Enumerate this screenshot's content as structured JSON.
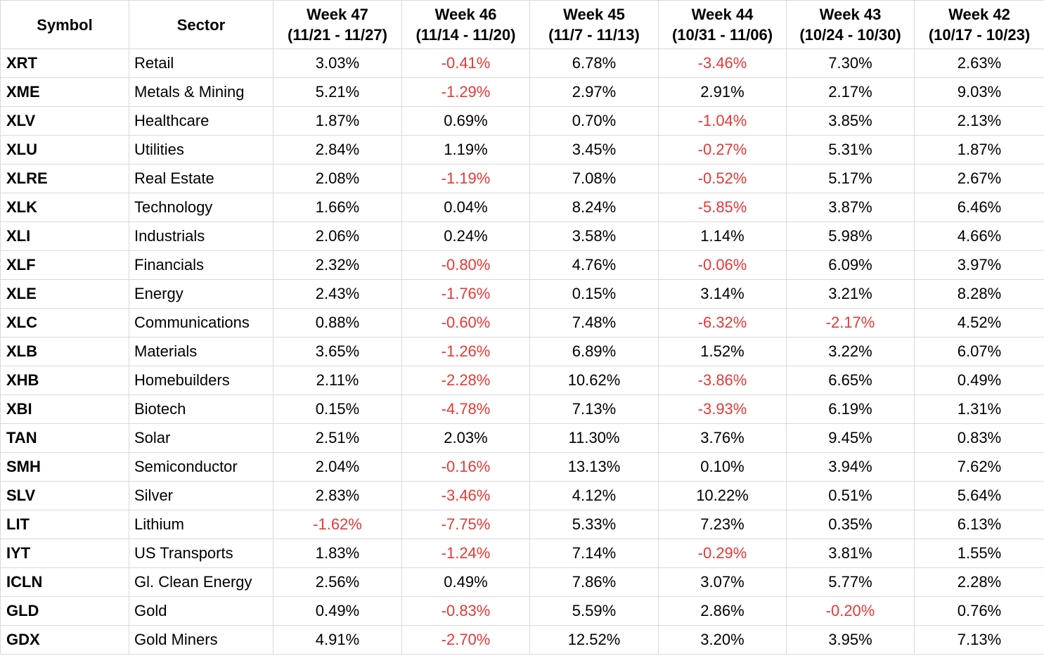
{
  "header": {
    "symbol": "Symbol",
    "sector": "Sector",
    "weeks": [
      {
        "label": "Week 47",
        "range": "(11/21 - 11/27)"
      },
      {
        "label": "Week 46",
        "range": "(11/14 - 11/20)"
      },
      {
        "label": "Week 45",
        "range": "(11/7 - 11/13)"
      },
      {
        "label": "Week 44",
        "range": "(10/31 - 11/06)"
      },
      {
        "label": "Week 43",
        "range": "(10/24 - 10/30)"
      },
      {
        "label": "Week 42",
        "range": "(10/17 - 10/23)"
      }
    ]
  },
  "colors": {
    "negative": "#e53935",
    "border": "#d9d9d9"
  },
  "rows": [
    {
      "symbol": "XRT",
      "sector": "Retail",
      "values": [
        "3.03%",
        "-0.41%",
        "6.78%",
        "-3.46%",
        "7.30%",
        "2.63%"
      ]
    },
    {
      "symbol": "XME",
      "sector": "Metals & Mining",
      "values": [
        "5.21%",
        "-1.29%",
        "2.97%",
        "2.91%",
        "2.17%",
        "9.03%"
      ]
    },
    {
      "symbol": "XLV",
      "sector": "Healthcare",
      "values": [
        "1.87%",
        "0.69%",
        "0.70%",
        "-1.04%",
        "3.85%",
        "2.13%"
      ]
    },
    {
      "symbol": "XLU",
      "sector": "Utilities",
      "values": [
        "2.84%",
        "1.19%",
        "3.45%",
        "-0.27%",
        "5.31%",
        "1.87%"
      ]
    },
    {
      "symbol": "XLRE",
      "sector": "Real Estate",
      "values": [
        "2.08%",
        "-1.19%",
        "7.08%",
        "-0.52%",
        "5.17%",
        "2.67%"
      ]
    },
    {
      "symbol": "XLK",
      "sector": "Technology",
      "values": [
        "1.66%",
        "0.04%",
        "8.24%",
        "-5.85%",
        "3.87%",
        "6.46%"
      ]
    },
    {
      "symbol": "XLI",
      "sector": "Industrials",
      "values": [
        "2.06%",
        "0.24%",
        "3.58%",
        "1.14%",
        "5.98%",
        "4.66%"
      ]
    },
    {
      "symbol": "XLF",
      "sector": "Financials",
      "values": [
        "2.32%",
        "-0.80%",
        "4.76%",
        "-0.06%",
        "6.09%",
        "3.97%"
      ]
    },
    {
      "symbol": "XLE",
      "sector": "Energy",
      "values": [
        "2.43%",
        "-1.76%",
        "0.15%",
        "3.14%",
        "3.21%",
        "8.28%"
      ]
    },
    {
      "symbol": "XLC",
      "sector": "Communications",
      "values": [
        "0.88%",
        "-0.60%",
        "7.48%",
        "-6.32%",
        "-2.17%",
        "4.52%"
      ]
    },
    {
      "symbol": "XLB",
      "sector": "Materials",
      "values": [
        "3.65%",
        "-1.26%",
        "6.89%",
        "1.52%",
        "3.22%",
        "6.07%"
      ]
    },
    {
      "symbol": "XHB",
      "sector": "Homebuilders",
      "values": [
        "2.11%",
        "-2.28%",
        "10.62%",
        "-3.86%",
        "6.65%",
        "0.49%"
      ]
    },
    {
      "symbol": "XBI",
      "sector": "Biotech",
      "values": [
        "0.15%",
        "-4.78%",
        "7.13%",
        "-3.93%",
        "6.19%",
        "1.31%"
      ]
    },
    {
      "symbol": "TAN",
      "sector": "Solar",
      "values": [
        "2.51%",
        "2.03%",
        "11.30%",
        "3.76%",
        "9.45%",
        "0.83%"
      ]
    },
    {
      "symbol": "SMH",
      "sector": "Semiconductor",
      "values": [
        "2.04%",
        "-0.16%",
        "13.13%",
        "0.10%",
        "3.94%",
        "7.62%"
      ]
    },
    {
      "symbol": "SLV",
      "sector": "Silver",
      "values": [
        "2.83%",
        "-3.46%",
        "4.12%",
        "10.22%",
        "0.51%",
        "5.64%"
      ]
    },
    {
      "symbol": "LIT",
      "sector": "Lithium",
      "values": [
        "-1.62%",
        "-7.75%",
        "5.33%",
        "7.23%",
        "0.35%",
        "6.13%"
      ]
    },
    {
      "symbol": "IYT",
      "sector": "US Transports",
      "values": [
        "1.83%",
        "-1.24%",
        "7.14%",
        "-0.29%",
        "3.81%",
        "1.55%"
      ]
    },
    {
      "symbol": "ICLN",
      "sector": "Gl. Clean Energy",
      "values": [
        "2.56%",
        "0.49%",
        "7.86%",
        "3.07%",
        "5.77%",
        "2.28%"
      ]
    },
    {
      "symbol": "GLD",
      "sector": "Gold",
      "values": [
        "0.49%",
        "-0.83%",
        "5.59%",
        "2.86%",
        "-0.20%",
        "0.76%"
      ]
    },
    {
      "symbol": "GDX",
      "sector": "Gold Miners",
      "values": [
        "4.91%",
        "-2.70%",
        "12.52%",
        "3.20%",
        "3.95%",
        "7.13%"
      ]
    }
  ]
}
